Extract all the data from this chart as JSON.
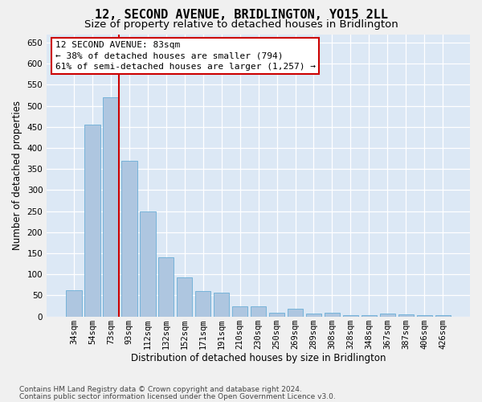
{
  "title": "12, SECOND AVENUE, BRIDLINGTON, YO15 2LL",
  "subtitle": "Size of property relative to detached houses in Bridlington",
  "xlabel": "Distribution of detached houses by size in Bridlington",
  "ylabel": "Number of detached properties",
  "categories": [
    "34sqm",
    "54sqm",
    "73sqm",
    "93sqm",
    "112sqm",
    "132sqm",
    "152sqm",
    "171sqm",
    "191sqm",
    "210sqm",
    "230sqm",
    "250sqm",
    "269sqm",
    "289sqm",
    "308sqm",
    "328sqm",
    "348sqm",
    "367sqm",
    "387sqm",
    "406sqm",
    "426sqm"
  ],
  "values": [
    63,
    455,
    520,
    370,
    250,
    140,
    93,
    61,
    57,
    25,
    25,
    8,
    18,
    7,
    9,
    4,
    3,
    7,
    6,
    4,
    4
  ],
  "bar_color": "#aec6e0",
  "bar_edge_color": "#6aaed6",
  "highlight_bar_index": 2,
  "highlight_color": "#cc0000",
  "annotation_line1": "12 SECOND AVENUE: 83sqm",
  "annotation_line2": "← 38% of detached houses are smaller (794)",
  "annotation_line3": "61% of semi-detached houses are larger (1,257) →",
  "annotation_box_facecolor": "#ffffff",
  "annotation_box_edgecolor": "#cc0000",
  "ylim": [
    0,
    670
  ],
  "yticks": [
    0,
    50,
    100,
    150,
    200,
    250,
    300,
    350,
    400,
    450,
    500,
    550,
    600,
    650
  ],
  "footnote1": "Contains HM Land Registry data © Crown copyright and database right 2024.",
  "footnote2": "Contains public sector information licensed under the Open Government Licence v3.0.",
  "plot_bg_color": "#dce8f5",
  "fig_bg_color": "#f0f0f0",
  "grid_color": "#ffffff",
  "title_fontsize": 11,
  "subtitle_fontsize": 9.5,
  "tick_fontsize": 7.5,
  "ylabel_fontsize": 8.5,
  "xlabel_fontsize": 8.5,
  "annotation_fontsize": 8,
  "footnote_fontsize": 6.5
}
